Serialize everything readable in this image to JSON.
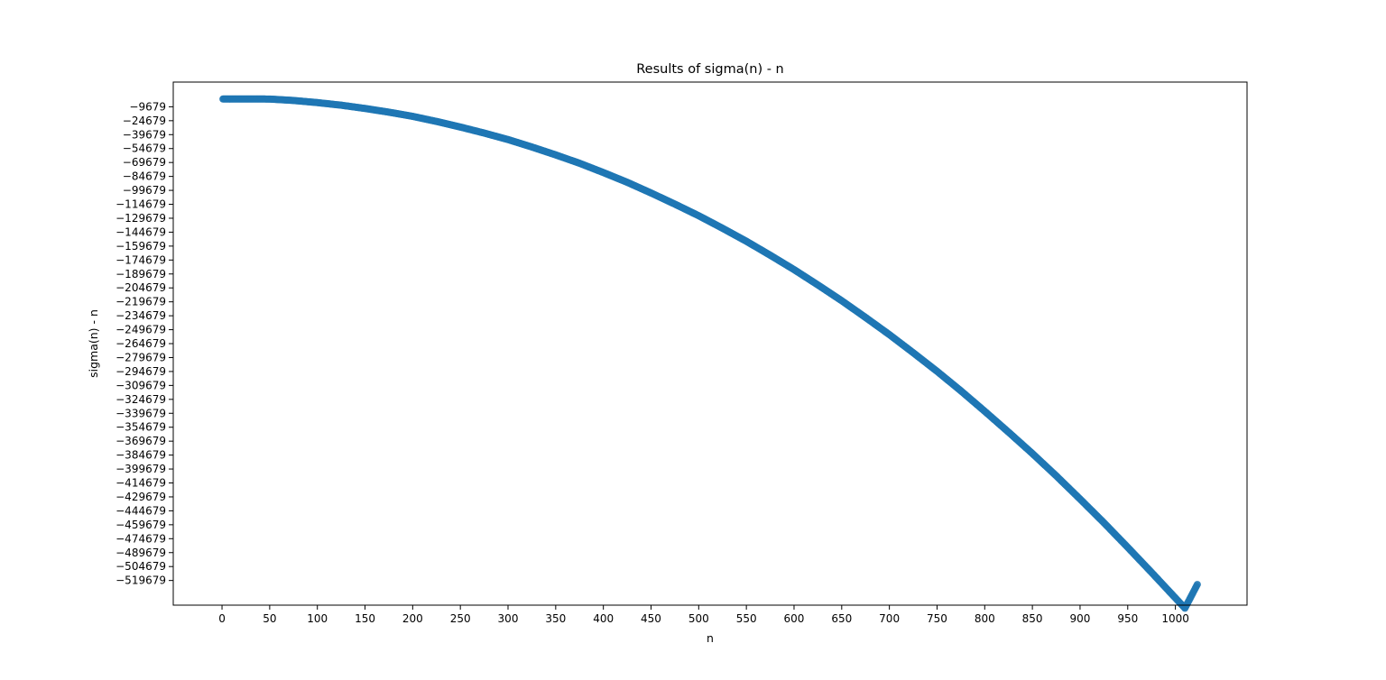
{
  "chart_data": {
    "type": "scatter",
    "title": "Results of sigma(n) - n",
    "xlabel": "n",
    "ylabel": "sigma(n) - n",
    "marker_color": "#1f77b4",
    "grid": false,
    "legend": "none",
    "xlim": [
      -51.15,
      1075.15
    ],
    "ylim": [
      -546233,
      16913
    ],
    "x_ticks": [
      0,
      50,
      100,
      150,
      200,
      250,
      300,
      350,
      400,
      450,
      500,
      550,
      600,
      650,
      700,
      750,
      800,
      850,
      900,
      950,
      1000
    ],
    "x_tick_labels": [
      "0",
      "50",
      "100",
      "150",
      "200",
      "250",
      "300",
      "350",
      "400",
      "450",
      "500",
      "550",
      "600",
      "650",
      "700",
      "750",
      "800",
      "850",
      "900",
      "950",
      "1000"
    ],
    "y_ticks": [
      -9679,
      -24679,
      -39679,
      -54679,
      -69679,
      -84679,
      -99679,
      -114679,
      -129679,
      -144679,
      -159679,
      -174679,
      -189679,
      -204679,
      -219679,
      -234679,
      -249679,
      -264679,
      -279679,
      -294679,
      -309679,
      -324679,
      -339679,
      -354679,
      -369679,
      -384679,
      -399679,
      -414679,
      -429679,
      -444679,
      -459679,
      -474679,
      -489679,
      -504679,
      -519679
    ],
    "y_tick_labels": [
      "−9679",
      "−24679",
      "−39679",
      "−54679",
      "−69679",
      "−84679",
      "−99679",
      "−114679",
      "−129679",
      "−144679",
      "−159679",
      "−174679",
      "−189679",
      "−204679",
      "−219679",
      "−234679",
      "−249679",
      "−264679",
      "−279679",
      "−294679",
      "−309679",
      "−324679",
      "−339679",
      "−354679",
      "−369679",
      "−384679",
      "−399679",
      "−414679",
      "−429679",
      "−444679",
      "−459679",
      "−474679",
      "−489679",
      "−504679",
      "−519679"
    ],
    "series": [
      {
        "x": [
          0,
          10,
          20,
          30,
          40,
          50,
          75,
          100,
          125,
          150,
          175,
          200,
          225,
          250,
          275,
          300,
          325,
          350,
          375,
          400,
          425,
          450,
          475,
          500,
          525,
          550,
          575,
          600,
          625,
          650,
          675,
          700,
          725,
          750,
          775,
          800,
          825,
          850,
          875,
          900,
          925,
          950,
          975,
          1000,
          1010,
          1023
        ],
        "y": [
          -1300,
          -1300,
          -1300,
          -1300,
          -1300,
          -1400,
          -2900,
          -5200,
          -8000,
          -11500,
          -15500,
          -20000,
          -25500,
          -31500,
          -38000,
          -45000,
          -53000,
          -61500,
          -70500,
          -80500,
          -91000,
          -102500,
          -114500,
          -127000,
          -140500,
          -154500,
          -169500,
          -185000,
          -201500,
          -218500,
          -236500,
          -255000,
          -274500,
          -294500,
          -315500,
          -337500,
          -360000,
          -383000,
          -407000,
          -432000,
          -457500,
          -484000,
          -511000,
          -538500,
          -549500,
          -524000
        ]
      }
    ]
  }
}
